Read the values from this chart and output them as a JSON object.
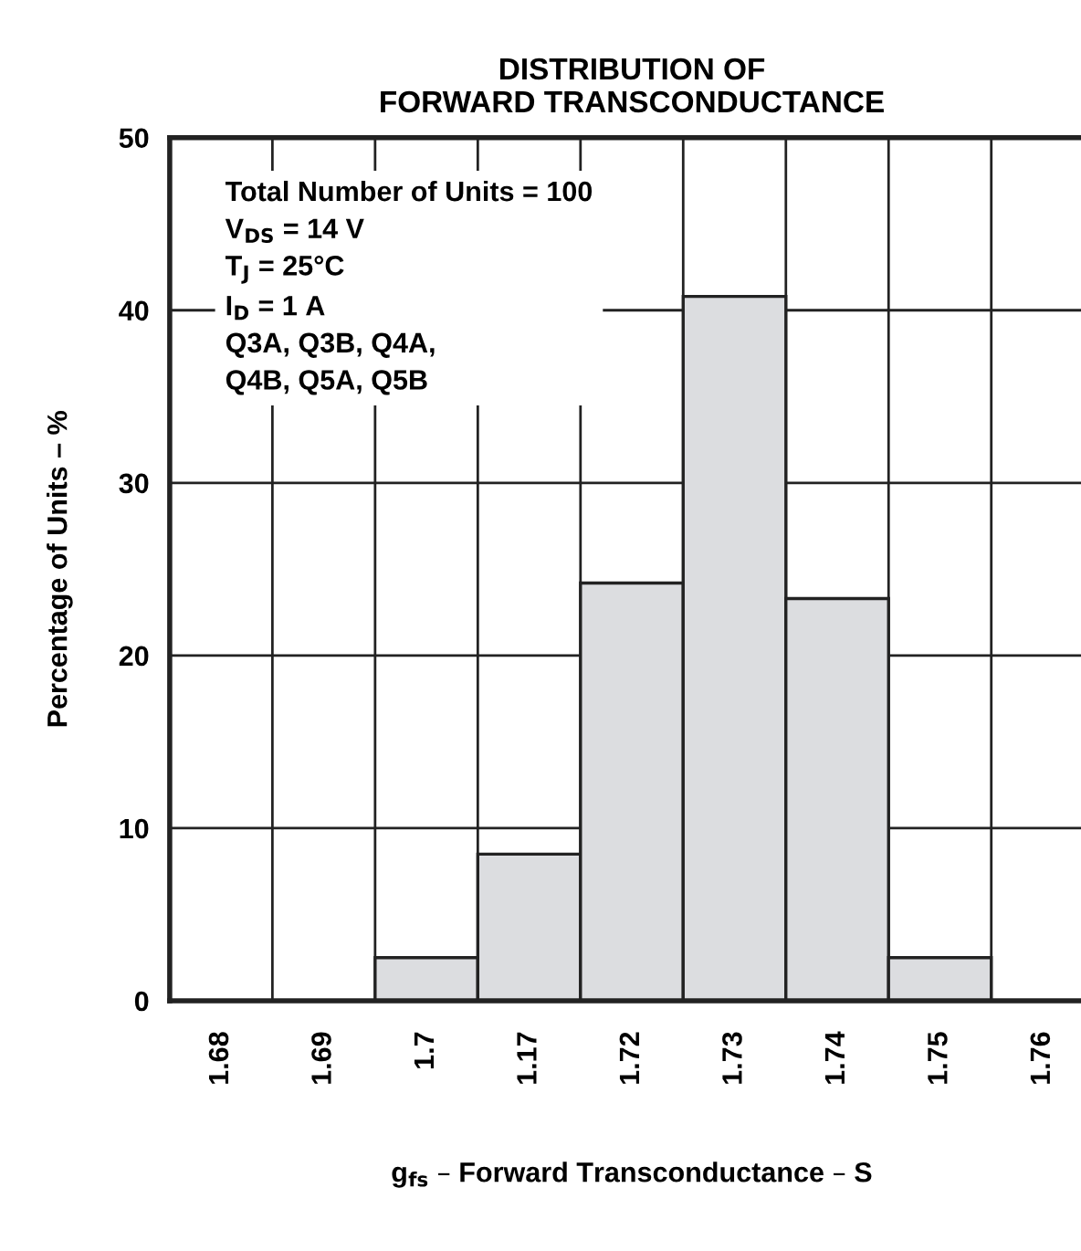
{
  "chart_data": {
    "type": "bar",
    "title": "DISTRIBUTION OF\nFORWARD TRANSCONDUCTANCE",
    "xlabel": "g$_{fs}$ – Forward Transconductance – S",
    "ylabel": "Percentage of Units – %",
    "categories": [
      "1.68",
      "1.69",
      "1.7",
      "1.17",
      "1.72",
      "1.73",
      "1.74",
      "1.75",
      "1.76"
    ],
    "values": [
      0,
      0,
      2.5,
      8.5,
      24.2,
      40.8,
      23.3,
      2.5,
      0
    ],
    "color": "#dcdde0",
    "ylim": [
      0,
      50
    ],
    "yticks": [
      0,
      10,
      20,
      30,
      40,
      50
    ],
    "grid": true,
    "annotations": [
      "Total Number of Units = 100\nV$_{DS}$ = 14 V\nT$_{J}$ = 25°C\nI$_{D}$ = 1 A\nQ3A, Q3B, Q4A,\nQ4B, Q5A, Q5B"
    ]
  }
}
